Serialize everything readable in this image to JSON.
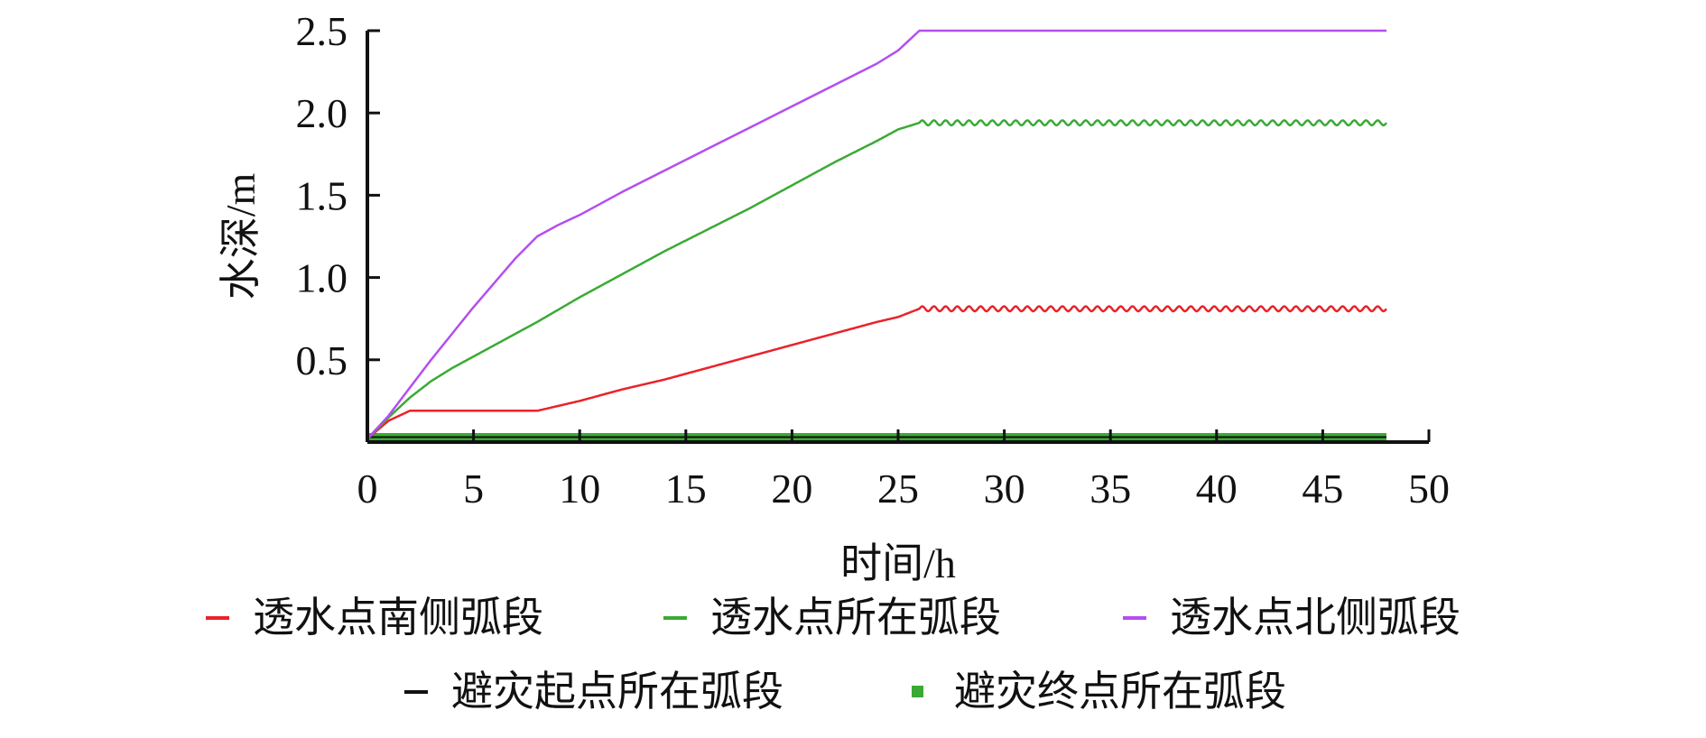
{
  "chart_data": {
    "type": "line",
    "title": "",
    "xlabel": "时间/h",
    "ylabel": "水深/m",
    "xlim": [
      0,
      50
    ],
    "ylim": [
      0,
      2.5
    ],
    "x_ticks": [
      0,
      5,
      10,
      15,
      20,
      25,
      30,
      35,
      40,
      45,
      50
    ],
    "x_tick_labels": [
      "0",
      "5",
      "10",
      "15",
      "20",
      "25",
      "30",
      "35",
      "40",
      "45",
      "50"
    ],
    "y_ticks": [
      0.5,
      1.0,
      1.5,
      2.0,
      2.5
    ],
    "y_tick_labels": [
      "0.5",
      "1.0",
      "1.5",
      "2.0",
      "2.5"
    ],
    "grid": false,
    "legend_position": "bottom",
    "series": [
      {
        "name": "透水点南侧弧段",
        "color": "#e8232a",
        "marker": "dash",
        "x": [
          0,
          1,
          2,
          3,
          4,
          5,
          6,
          7,
          8,
          9,
          10,
          12,
          14,
          16,
          18,
          20,
          22,
          24,
          25,
          26,
          30,
          35,
          40,
          45,
          48
        ],
        "y": [
          0.02,
          0.13,
          0.19,
          0.19,
          0.19,
          0.19,
          0.19,
          0.19,
          0.19,
          0.22,
          0.25,
          0.32,
          0.38,
          0.45,
          0.52,
          0.59,
          0.66,
          0.73,
          0.76,
          0.81,
          0.81,
          0.81,
          0.81,
          0.81,
          0.81
        ],
        "oscillation_from": 26,
        "oscillation_amplitude": 0.015
      },
      {
        "name": "透水点所在弧段",
        "color": "#3aaa35",
        "marker": "dash",
        "x": [
          0,
          1,
          2,
          3,
          4,
          5,
          6,
          7,
          8,
          10,
          12,
          14,
          16,
          18,
          20,
          22,
          24,
          25,
          26,
          30,
          35,
          40,
          45,
          48
        ],
        "y": [
          0.02,
          0.15,
          0.27,
          0.37,
          0.45,
          0.52,
          0.59,
          0.66,
          0.73,
          0.88,
          1.02,
          1.16,
          1.29,
          1.42,
          1.56,
          1.7,
          1.83,
          1.9,
          1.94,
          1.94,
          1.94,
          1.94,
          1.94,
          1.94
        ],
        "oscillation_from": 26,
        "oscillation_amplitude": 0.015
      },
      {
        "name": "透水点北侧弧段",
        "color": "#b44df2",
        "marker": "dash",
        "x": [
          0,
          1,
          2,
          3,
          4,
          5,
          6,
          7,
          8,
          9,
          10,
          12,
          14,
          16,
          18,
          20,
          22,
          24,
          25,
          26,
          30,
          35,
          40,
          45,
          48
        ],
        "y": [
          0.02,
          0.16,
          0.33,
          0.5,
          0.66,
          0.82,
          0.97,
          1.12,
          1.25,
          1.32,
          1.38,
          1.52,
          1.65,
          1.78,
          1.91,
          2.04,
          2.17,
          2.3,
          2.38,
          2.5,
          2.5,
          2.5,
          2.5,
          2.5,
          2.5
        ]
      },
      {
        "name": "避灾起点所在弧段",
        "color": "#111111",
        "marker": "dash",
        "x": [
          0,
          48
        ],
        "y": [
          0.03,
          0.03
        ]
      },
      {
        "name": "避灾终点所在弧段",
        "color": "#3aaa35",
        "marker": "square",
        "x": [
          0,
          48
        ],
        "y": [
          0.03,
          0.03
        ]
      }
    ]
  }
}
